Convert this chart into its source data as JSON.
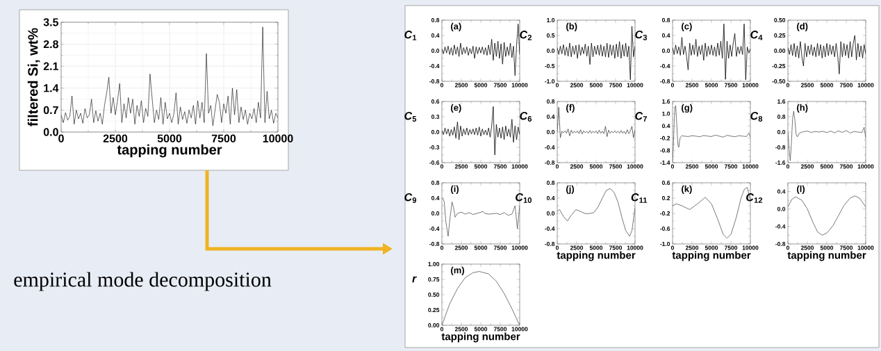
{
  "chart_data": [
    {
      "type": "line",
      "xlabel": "tapping number",
      "ylabel": "filtered Si, wt%",
      "annotations": [
        "empirical mode decomposition"
      ],
      "grid": true,
      "x": [
        0,
        100,
        200,
        300,
        400,
        500,
        600,
        700,
        800,
        900,
        1000,
        1100,
        1200,
        1300,
        1400,
        1500,
        1600,
        1700,
        1800,
        1900,
        2000,
        2100,
        2200,
        2300,
        2400,
        2500,
        2600,
        2700,
        2800,
        2900,
        3000,
        3100,
        3200,
        3300,
        3400,
        3500,
        3600,
        3700,
        3800,
        3900,
        4000,
        4100,
        4200,
        4300,
        4400,
        4500,
        4600,
        4700,
        4800,
        4900,
        5000,
        5100,
        5200,
        5300,
        5400,
        5500,
        5600,
        5700,
        5800,
        5900,
        6000,
        6100,
        6200,
        6300,
        6400,
        6500,
        6600,
        6700,
        6800,
        6900,
        7000,
        7100,
        7200,
        7300,
        7400,
        7500,
        7600,
        7700,
        7800,
        7900,
        8000,
        8100,
        8200,
        8300,
        8400,
        8500,
        8600,
        8700,
        8800,
        8900,
        9000,
        9100,
        9200,
        9300,
        9400,
        9500,
        9600,
        9700,
        9800,
        9900,
        10000
      ],
      "series": [
        {
          "color": "#000000",
          "values": [
            0.55,
            0.3,
            0.62,
            0.38,
            0.5,
            1.15,
            0.25,
            0.7,
            0.42,
            0.6,
            0.28,
            0.75,
            0.45,
            0.55,
            1.05,
            0.3,
            0.68,
            0.35,
            0.6,
            0.25,
            0.85,
            1.25,
            1.75,
            0.6,
            1.1,
            0.55,
            1.0,
            1.55,
            0.3,
            0.9,
            0.45,
            1.1,
            0.6,
            1.05,
            0.25,
            0.85,
            0.5,
            1.0,
            0.3,
            0.75,
            0.5,
            1.85,
            1.05,
            0.3,
            0.7,
            0.4,
            1.1,
            0.25,
            0.95,
            0.42,
            0.6,
            0.3,
            0.58,
            1.25,
            0.25,
            0.8,
            0.4,
            0.65,
            0.28,
            0.7,
            0.45,
            0.85,
            0.25,
            1.0,
            0.45,
            0.95,
            0.3,
            2.5,
            0.6,
            0.85,
            0.2,
            0.7,
            1.2,
            0.95,
            0.3,
            0.9,
            0.6,
            1.15,
            0.25,
            1.4,
            0.55,
            1.35,
            0.3,
            0.8,
            0.4,
            0.7,
            0.25,
            0.6,
            0.42,
            0.75,
            0.3,
            0.95,
            0.45,
            3.35,
            0.3,
            1.3,
            0.42,
            0.7,
            0.28,
            0.6,
            0.45
          ]
        }
      ],
      "xlim": [
        0,
        10000
      ],
      "xticks": [
        0,
        2500,
        5000,
        7500,
        10000
      ],
      "ylim": [
        0,
        3.5
      ],
      "yticks": [
        {
          "value": 0,
          "label": "0.0"
        },
        {
          "value": 0.7,
          "label": "0.7"
        },
        {
          "value": 1.4,
          "label": "1.4"
        },
        {
          "value": 2.1,
          "label": "2.1"
        },
        {
          "value": 2.8,
          "label": "2.8"
        },
        {
          "value": 3.5,
          "label": "3.5"
        }
      ]
    },
    {
      "type": "line",
      "ylabel": "*C*$_{1}$",
      "annotations": [
        "(a)"
      ],
      "x": [
        0,
        200,
        400,
        600,
        800,
        1000,
        1200,
        1400,
        1600,
        1800,
        2000,
        2200,
        2400,
        2600,
        2800,
        3000,
        3200,
        3400,
        3600,
        3800,
        4000,
        4200,
        4400,
        4600,
        4800,
        5000,
        5200,
        5400,
        5600,
        5800,
        6000,
        6200,
        6400,
        6600,
        6800,
        7000,
        7200,
        7400,
        7600,
        7800,
        8000,
        8200,
        8400,
        8600,
        8800,
        9000,
        9200,
        9400,
        9600,
        9800,
        10000
      ],
      "series": [
        {
          "color": "#000000",
          "values": [
            0.05,
            -0.08,
            0.1,
            -0.06,
            0.12,
            -0.1,
            0.08,
            -0.12,
            0.15,
            -0.09,
            0.1,
            -0.15,
            0.2,
            -0.1,
            0.08,
            -0.07,
            0.1,
            -0.12,
            0.06,
            -0.08,
            0.12,
            -0.2,
            0.1,
            -0.08,
            0.09,
            -0.06,
            0.1,
            -0.1,
            0.08,
            -0.12,
            0.15,
            -0.1,
            0.3,
            -0.25,
            0.2,
            -0.15,
            0.25,
            -0.2,
            0.18,
            -0.35,
            0.22,
            -0.15,
            0.1,
            -0.12,
            0.2,
            -0.18,
            0.12,
            -0.65,
            0.15,
            0.7,
            -0.1
          ]
        }
      ],
      "xlim": [
        0,
        10000
      ],
      "xticks": [
        0,
        2500,
        5000,
        7500,
        10000
      ],
      "ylim": [
        -0.8,
        0.8
      ],
      "yticks": [
        {
          "value": -0.8,
          "label": "-0.8"
        },
        {
          "value": -0.4,
          "label": "-0.4"
        },
        {
          "value": 0,
          "label": "0.0"
        },
        {
          "value": 0.4,
          "label": "0.4"
        },
        {
          "value": 0.8,
          "label": "0.8"
        }
      ]
    },
    {
      "type": "line",
      "ylabel": "*C*$_{2}$",
      "annotations": [
        "(b)"
      ],
      "x": [
        0,
        200,
        400,
        600,
        800,
        1000,
        1200,
        1400,
        1600,
        1800,
        2000,
        2200,
        2400,
        2600,
        2800,
        3000,
        3200,
        3400,
        3600,
        3800,
        4000,
        4200,
        4400,
        4600,
        4800,
        5000,
        5200,
        5400,
        5600,
        5800,
        6000,
        6200,
        6400,
        6600,
        6800,
        7000,
        7200,
        7400,
        7600,
        7800,
        8000,
        8200,
        8400,
        8600,
        8800,
        9000,
        9200,
        9400,
        9600,
        9800,
        10000
      ],
      "series": [
        {
          "color": "#000000",
          "values": [
            0.1,
            -0.12,
            0.15,
            -0.1,
            0.2,
            -0.15,
            0.12,
            -0.18,
            0.25,
            -0.2,
            0.15,
            -0.12,
            0.18,
            -0.25,
            0.2,
            -0.15,
            0.12,
            -0.1,
            0.22,
            -0.18,
            0.15,
            -0.45,
            0.25,
            -0.2,
            0.15,
            -0.12,
            0.18,
            -0.15,
            0.2,
            -0.18,
            0.15,
            -0.2,
            0.25,
            -0.22,
            0.2,
            -0.15,
            0.18,
            -0.25,
            0.22,
            -0.2,
            0.3,
            -0.25,
            0.2,
            -0.18,
            0.25,
            -0.2,
            0.15,
            -0.95,
            0.8,
            -0.2,
            0.15
          ]
        }
      ],
      "xlim": [
        0,
        10000
      ],
      "xticks": [
        0,
        2500,
        5000,
        7500,
        10000
      ],
      "ylim": [
        -1.0,
        1.0
      ],
      "yticks": [
        {
          "value": -1.0,
          "label": "-1.0"
        },
        {
          "value": -0.5,
          "label": "-0.5"
        },
        {
          "value": 0,
          "label": "0.0"
        },
        {
          "value": 0.5,
          "label": "0.5"
        },
        {
          "value": 1.0,
          "label": "1.0"
        }
      ]
    },
    {
      "type": "line",
      "ylabel": "*C*$_{3}$",
      "annotations": [
        "(c)"
      ],
      "x": [
        0,
        200,
        400,
        600,
        800,
        1000,
        1200,
        1400,
        1600,
        1800,
        2000,
        2200,
        2400,
        2600,
        2800,
        3000,
        3200,
        3400,
        3600,
        3800,
        4000,
        4200,
        4400,
        4600,
        4800,
        5000,
        5200,
        5400,
        5600,
        5800,
        6000,
        6200,
        6400,
        6600,
        6800,
        7000,
        7200,
        7400,
        7600,
        7800,
        8000,
        8200,
        8400,
        8600,
        8800,
        9000,
        9200,
        9400,
        9600,
        9800,
        10000
      ],
      "series": [
        {
          "color": "#000000",
          "values": [
            0.08,
            -0.1,
            0.15,
            -0.08,
            0.1,
            -0.12,
            0.35,
            -0.1,
            0.12,
            -0.15,
            -0.5,
            0.2,
            -0.12,
            0.15,
            -0.1,
            0.3,
            -0.15,
            0.12,
            -0.1,
            0.15,
            -0.25,
            0.2,
            -0.15,
            0.12,
            -0.1,
            0.15,
            -0.12,
            0.1,
            -0.15,
            0.2,
            -0.12,
            0.25,
            -0.2,
            0.7,
            -0.75,
            0.25,
            -0.2,
            0.15,
            -0.15,
            0.2,
            0.45,
            -0.15,
            0.1,
            -0.08,
            0.12,
            -0.1,
            0.7,
            -0.76,
            0.1,
            -0.06,
            0.05
          ]
        }
      ],
      "xlim": [
        0,
        10000
      ],
      "xticks": [
        0,
        2500,
        5000,
        7500,
        10000
      ],
      "ylim": [
        -0.8,
        0.8
      ],
      "yticks": [
        {
          "value": -0.8,
          "label": "-0.8"
        },
        {
          "value": -0.4,
          "label": "-0.4"
        },
        {
          "value": 0,
          "label": "0.0"
        },
        {
          "value": 0.4,
          "label": "0.4"
        },
        {
          "value": 0.8,
          "label": "0.8"
        }
      ]
    },
    {
      "type": "line",
      "ylabel": "*C*$_{4}$",
      "annotations": [
        "(d)"
      ],
      "x": [
        0,
        200,
        400,
        600,
        800,
        1000,
        1200,
        1400,
        1600,
        1800,
        2000,
        2200,
        2400,
        2600,
        2800,
        3000,
        3200,
        3400,
        3600,
        3800,
        4000,
        4200,
        4400,
        4600,
        4800,
        5000,
        5200,
        5400,
        5600,
        5800,
        6000,
        6200,
        6400,
        6600,
        6800,
        7000,
        7200,
        7400,
        7600,
        7800,
        8000,
        8200,
        8400,
        8600,
        8800,
        9000,
        9200,
        9400,
        9600,
        9800,
        10000
      ],
      "series": [
        {
          "color": "#000000",
          "values": [
            0.05,
            -0.06,
            0.1,
            -0.08,
            0.12,
            -0.1,
            0.08,
            -0.12,
            0.15,
            -0.1,
            -0.25,
            0.12,
            -0.1,
            0.08,
            -0.06,
            0.1,
            -0.08,
            0.06,
            -0.1,
            0.12,
            -0.08,
            0.1,
            -0.12,
            0.08,
            -0.1,
            0.12,
            -0.08,
            0.1,
            -0.06,
            0.08,
            -0.1,
            0.12,
            -0.08,
            -0.38,
            0.15,
            -0.1,
            0.12,
            -0.08,
            0.1,
            -0.12,
            0.15,
            -0.1,
            0.12,
            0.25,
            -0.15,
            0.12,
            -0.1,
            0.08,
            -0.12,
            0.1,
            -0.05
          ]
        }
      ],
      "xlim": [
        0,
        10000
      ],
      "xticks": [
        0,
        2500,
        5000,
        7500,
        10000
      ],
      "ylim": [
        -0.5,
        0.5
      ],
      "yticks": [
        {
          "value": -0.5,
          "label": "-0.50"
        },
        {
          "value": -0.25,
          "label": "-0.25"
        },
        {
          "value": 0,
          "label": "0.00"
        },
        {
          "value": 0.25,
          "label": "0.25"
        },
        {
          "value": 0.5,
          "label": "0.50"
        }
      ]
    },
    {
      "type": "line",
      "ylabel": "*C*$_{5}$",
      "annotations": [
        "(e)"
      ],
      "x": [
        0,
        200,
        400,
        600,
        800,
        1000,
        1200,
        1400,
        1600,
        1800,
        2000,
        2200,
        2400,
        2600,
        2800,
        3000,
        3200,
        3400,
        3600,
        3800,
        4000,
        4200,
        4400,
        4600,
        4800,
        5000,
        5200,
        5400,
        5600,
        5800,
        6000,
        6200,
        6400,
        6600,
        6800,
        7000,
        7200,
        7400,
        7600,
        7800,
        8000,
        8200,
        8400,
        8600,
        8800,
        9000,
        9200,
        9400,
        9600,
        9800,
        10000
      ],
      "series": [
        {
          "color": "#000000",
          "values": [
            0.03,
            -0.05,
            0.08,
            -0.04,
            0.06,
            -0.08,
            0.05,
            -0.06,
            0.1,
            -0.12,
            0.2,
            -0.15,
            0.12,
            -0.08,
            0.06,
            -0.05,
            0.08,
            -0.06,
            0.05,
            -0.04,
            0.06,
            -0.05,
            0.08,
            -0.06,
            0.1,
            -0.08,
            0.06,
            -0.05,
            0.04,
            -0.06,
            0.08,
            -0.1,
            0.12,
            0.5,
            -0.45,
            0.15,
            -0.1,
            0.08,
            -0.12,
            0.1,
            -0.15,
            0.12,
            -0.08,
            0.06,
            -0.1,
            0.25,
            -0.2,
            0.12,
            -0.15,
            0.1,
            -0.05
          ]
        }
      ],
      "xlim": [
        0,
        10000
      ],
      "xticks": [
        0,
        2500,
        5000,
        7500,
        10000
      ],
      "ylim": [
        -0.6,
        0.6
      ],
      "yticks": [
        {
          "value": -0.6,
          "label": "-0.6"
        },
        {
          "value": -0.3,
          "label": "-0.3"
        },
        {
          "value": 0,
          "label": "0.0"
        },
        {
          "value": 0.3,
          "label": "0.3"
        },
        {
          "value": 0.6,
          "label": "0.6"
        }
      ]
    },
    {
      "type": "line",
      "ylabel": "*C*$_{6}$",
      "annotations": [
        "(f)"
      ],
      "x": [
        0,
        200,
        400,
        600,
        800,
        1000,
        1200,
        1400,
        1600,
        1800,
        2000,
        2200,
        2400,
        2600,
        2800,
        3000,
        3200,
        3400,
        3600,
        3800,
        4000,
        4200,
        4400,
        4600,
        4800,
        5000,
        5200,
        5400,
        5600,
        5800,
        6000,
        6200,
        6400,
        6600,
        6800,
        7000,
        7200,
        7400,
        7600,
        7800,
        8000,
        8200,
        8400,
        8600,
        8800,
        9000,
        9200,
        9400,
        9600,
        9800,
        10000
      ],
      "series": [
        {
          "color": "#444444",
          "values": [
            0.0,
            0.65,
            -0.15,
            0.02,
            -0.02,
            0.03,
            -0.03,
            0.08,
            -0.1,
            0.05,
            -0.03,
            0.02,
            -0.02,
            0.03,
            -0.04,
            0.06,
            -0.05,
            0.03,
            -0.02,
            0.02,
            -0.03,
            0.04,
            -0.03,
            0.02,
            -0.02,
            0.03,
            -0.04,
            0.05,
            -0.03,
            0.02,
            -0.04,
            0.15,
            -0.12,
            0.05,
            -0.03,
            0.02,
            -0.02,
            0.03,
            -0.02,
            0.02,
            -0.03,
            0.04,
            -0.03,
            0.02,
            -0.05,
            0.06,
            -0.04,
            0.03,
            0.15,
            -0.15,
            0.05
          ]
        }
      ],
      "xlim": [
        0,
        10000
      ],
      "xticks": [
        0,
        2500,
        5000,
        7500,
        10000
      ],
      "ylim": [
        -0.8,
        0.8
      ],
      "yticks": [
        {
          "value": -0.8,
          "label": "-0.8"
        },
        {
          "value": -0.4,
          "label": "-0.4"
        },
        {
          "value": 0,
          "label": "0.0"
        },
        {
          "value": 0.4,
          "label": "0.4"
        },
        {
          "value": 0.8,
          "label": "0.8"
        }
      ]
    },
    {
      "type": "line",
      "ylabel": "*C*$_{7}$",
      "annotations": [
        "(g)"
      ],
      "x": [
        0,
        100,
        200,
        300,
        400,
        500,
        600,
        700,
        800,
        900,
        1000,
        1200,
        1500,
        2000,
        2500,
        3000,
        3500,
        4000,
        4500,
        5000,
        5500,
        6000,
        6500,
        7000,
        7500,
        8000,
        8500,
        9000,
        9500,
        9800,
        10000
      ],
      "series": [
        {
          "color": "#555555",
          "values": [
            -1.3,
            -0.6,
            0.5,
            1.3,
            1.4,
            0.8,
            0.0,
            -0.55,
            -0.65,
            -0.35,
            -0.15,
            -0.08,
            -0.1,
            -0.12,
            -0.08,
            -0.1,
            -0.13,
            -0.07,
            -0.1,
            -0.12,
            -0.05,
            -0.1,
            -0.15,
            -0.06,
            -0.1,
            -0.13,
            -0.08,
            -0.1,
            -0.12,
            0.05,
            -0.15
          ]
        }
      ],
      "xlim": [
        0,
        10000
      ],
      "xticks": [
        0,
        2500,
        5000,
        7500,
        10000
      ],
      "ylim": [
        -1.4,
        1.6
      ],
      "yticks": [
        {
          "value": -1.4,
          "label": "-1.4"
        },
        {
          "value": -0.8,
          "label": "-0.8"
        },
        {
          "value": -0.2,
          "label": "-0.2"
        },
        {
          "value": 0.4,
          "label": "0.4"
        },
        {
          "value": 1.0,
          "label": "1.0"
        },
        {
          "value": 1.6,
          "label": "1.6"
        }
      ]
    },
    {
      "type": "line",
      "ylabel": "*C*$_{8}$",
      "annotations": [
        "(h)"
      ],
      "x": [
        0,
        150,
        300,
        450,
        600,
        750,
        900,
        1050,
        1200,
        1500,
        2000,
        2500,
        3000,
        3500,
        4000,
        4500,
        5000,
        5500,
        6000,
        6500,
        7000,
        7500,
        8000,
        8500,
        9000,
        9500,
        9800,
        10000
      ],
      "series": [
        {
          "color": "#555555",
          "values": [
            0.0,
            -0.9,
            -1.5,
            -0.6,
            0.7,
            1.1,
            0.6,
            -0.1,
            -0.25,
            -0.05,
            0.02,
            0.05,
            -0.02,
            0.03,
            0.0,
            0.04,
            -0.03,
            0.05,
            -0.04,
            0.06,
            -0.02,
            0.08,
            -0.05,
            0.03,
            0.0,
            -0.02,
            0.25,
            -0.3
          ]
        }
      ],
      "xlim": [
        0,
        10000
      ],
      "xticks": [
        0,
        2500,
        5000,
        7500,
        10000
      ],
      "ylim": [
        -1.6,
        1.6
      ],
      "yticks": [
        {
          "value": -1.6,
          "label": "-1.6"
        },
        {
          "value": -0.8,
          "label": "-0.8"
        },
        {
          "value": 0,
          "label": "0.0"
        },
        {
          "value": 0.8,
          "label": "0.8"
        },
        {
          "value": 1.6,
          "label": "1.6"
        }
      ]
    },
    {
      "type": "line",
      "ylabel": "*C*$_{9}$",
      "annotations": [
        "(i)"
      ],
      "x": [
        0,
        150,
        300,
        500,
        800,
        1000,
        1300,
        1500,
        1700,
        2000,
        2500,
        3000,
        3500,
        4000,
        4500,
        5000,
        5300,
        5500,
        6000,
        6500,
        7000,
        7500,
        8000,
        8500,
        9000,
        9400,
        9700,
        10000
      ],
      "series": [
        {
          "color": "#555555",
          "values": [
            0.4,
            0.38,
            0.3,
            -0.2,
            -0.6,
            -0.2,
            0.3,
            0.15,
            -0.1,
            0.0,
            0.03,
            -0.02,
            0.02,
            -0.03,
            0.0,
            0.03,
            0.05,
            0.0,
            -0.02,
            -0.01,
            0.0,
            -0.03,
            0.02,
            -0.05,
            -0.02,
            0.2,
            -0.4,
            0.2
          ]
        }
      ],
      "xlim": [
        0,
        10000
      ],
      "xticks": [
        0,
        2500,
        5000,
        7500,
        10000
      ],
      "ylim": [
        -0.8,
        0.8
      ],
      "yticks": [
        {
          "value": -0.8,
          "label": "-0.8"
        },
        {
          "value": -0.4,
          "label": "-0.4"
        },
        {
          "value": 0,
          "label": "0.0"
        },
        {
          "value": 0.4,
          "label": "0.4"
        },
        {
          "value": 0.8,
          "label": "0.8"
        }
      ]
    },
    {
      "type": "line",
      "ylabel": "*C*$_{10}$",
      "xlabel": "tapping number",
      "annotations": [
        "(j)"
      ],
      "x": [
        0,
        300,
        800,
        1300,
        1800,
        2400,
        3000,
        3500,
        4000,
        4700,
        5200,
        5800,
        6300,
        6800,
        7300,
        7800,
        8300,
        8800,
        9300,
        9600,
        10000
      ],
      "series": [
        {
          "color": "#555555",
          "values": [
            0.05,
            0.1,
            -0.08,
            -0.2,
            -0.05,
            0.1,
            0.05,
            0.0,
            -0.01,
            0.02,
            0.15,
            0.4,
            0.6,
            0.65,
            0.55,
            0.3,
            -0.1,
            -0.45,
            -0.6,
            -0.45,
            0.15
          ]
        }
      ],
      "xlim": [
        0,
        10000
      ],
      "xticks": [
        0,
        2500,
        5000,
        7500,
        10000
      ],
      "ylim": [
        -0.8,
        0.8
      ],
      "yticks": [
        {
          "value": -0.8,
          "label": "-0.8"
        },
        {
          "value": -0.4,
          "label": "-0.4"
        },
        {
          "value": 0,
          "label": "0.0"
        },
        {
          "value": 0.4,
          "label": "0.4"
        },
        {
          "value": 0.8,
          "label": "0.8"
        }
      ]
    },
    {
      "type": "line",
      "ylabel": "*C*$_{11}$",
      "xlabel": "tapping number",
      "annotations": [
        "(k)"
      ],
      "x": [
        0,
        500,
        1200,
        2200,
        3200,
        4200,
        5000,
        5800,
        6500,
        7000,
        7500,
        8200,
        8800,
        9200,
        9600,
        10000
      ],
      "series": [
        {
          "color": "#555555",
          "values": [
            0.0,
            0.05,
            0.0,
            -0.1,
            0.05,
            0.22,
            0.05,
            -0.35,
            -0.75,
            -0.85,
            -0.75,
            -0.3,
            0.2,
            0.42,
            0.48,
            0.15
          ]
        }
      ],
      "xlim": [
        0,
        10000
      ],
      "xticks": [
        0,
        2500,
        5000,
        7500,
        10000
      ],
      "ylim": [
        -1.0,
        0.6
      ],
      "yticks": [
        {
          "value": -1.0,
          "label": "-1.0"
        },
        {
          "value": -0.6,
          "label": "-0.6"
        },
        {
          "value": -0.2,
          "label": "-0.2"
        },
        {
          "value": 0.2,
          "label": "0.2"
        },
        {
          "value": 0.6,
          "label": "0.6"
        }
      ]
    },
    {
      "type": "line",
      "ylabel": "*C*$_{12}$",
      "xlabel": "tapping number",
      "annotations": [
        "(l)"
      ],
      "x": [
        0,
        500,
        1000,
        1800,
        2500,
        3200,
        3800,
        4400,
        5000,
        5800,
        6500,
        7200,
        8000,
        8600,
        9200,
        10000
      ],
      "series": [
        {
          "color": "#555555",
          "values": [
            0.05,
            0.22,
            0.28,
            0.2,
            0.0,
            -0.3,
            -0.52,
            -0.6,
            -0.55,
            -0.38,
            -0.15,
            0.08,
            0.25,
            0.3,
            0.25,
            0.05
          ]
        }
      ],
      "xlim": [
        0,
        10000
      ],
      "xticks": [
        0,
        2500,
        5000,
        7500,
        10000
      ],
      "ylim": [
        -0.8,
        0.6
      ],
      "yticks": [
        {
          "value": -0.8,
          "label": "-0.8"
        },
        {
          "value": -0.4,
          "label": "-0.4"
        },
        {
          "value": 0,
          "label": "0.0"
        },
        {
          "value": 0.4,
          "label": "0.4"
        }
      ]
    },
    {
      "type": "line",
      "ylabel": "*r*",
      "xlabel": "tapping number",
      "annotations": [
        "(m)"
      ],
      "x": [
        0,
        1000,
        2000,
        3000,
        4000,
        4800,
        6000,
        7000,
        8000,
        9000,
        10000
      ],
      "series": [
        {
          "color": "#555555",
          "values": [
            0.0,
            0.35,
            0.6,
            0.78,
            0.86,
            0.88,
            0.84,
            0.72,
            0.52,
            0.27,
            0.0
          ]
        }
      ],
      "xlim": [
        0,
        10000
      ],
      "xticks": [
        0,
        2500,
        5000,
        7500,
        10000
      ],
      "ylim": [
        0,
        1.0
      ],
      "yticks": [
        {
          "value": 0,
          "label": "0.00"
        },
        {
          "value": 0.25,
          "label": "0.25"
        },
        {
          "value": 0.5,
          "label": "0.50"
        },
        {
          "value": 0.75,
          "label": "0.75"
        },
        {
          "value": 1.0,
          "label": "1.00"
        }
      ]
    }
  ]
}
